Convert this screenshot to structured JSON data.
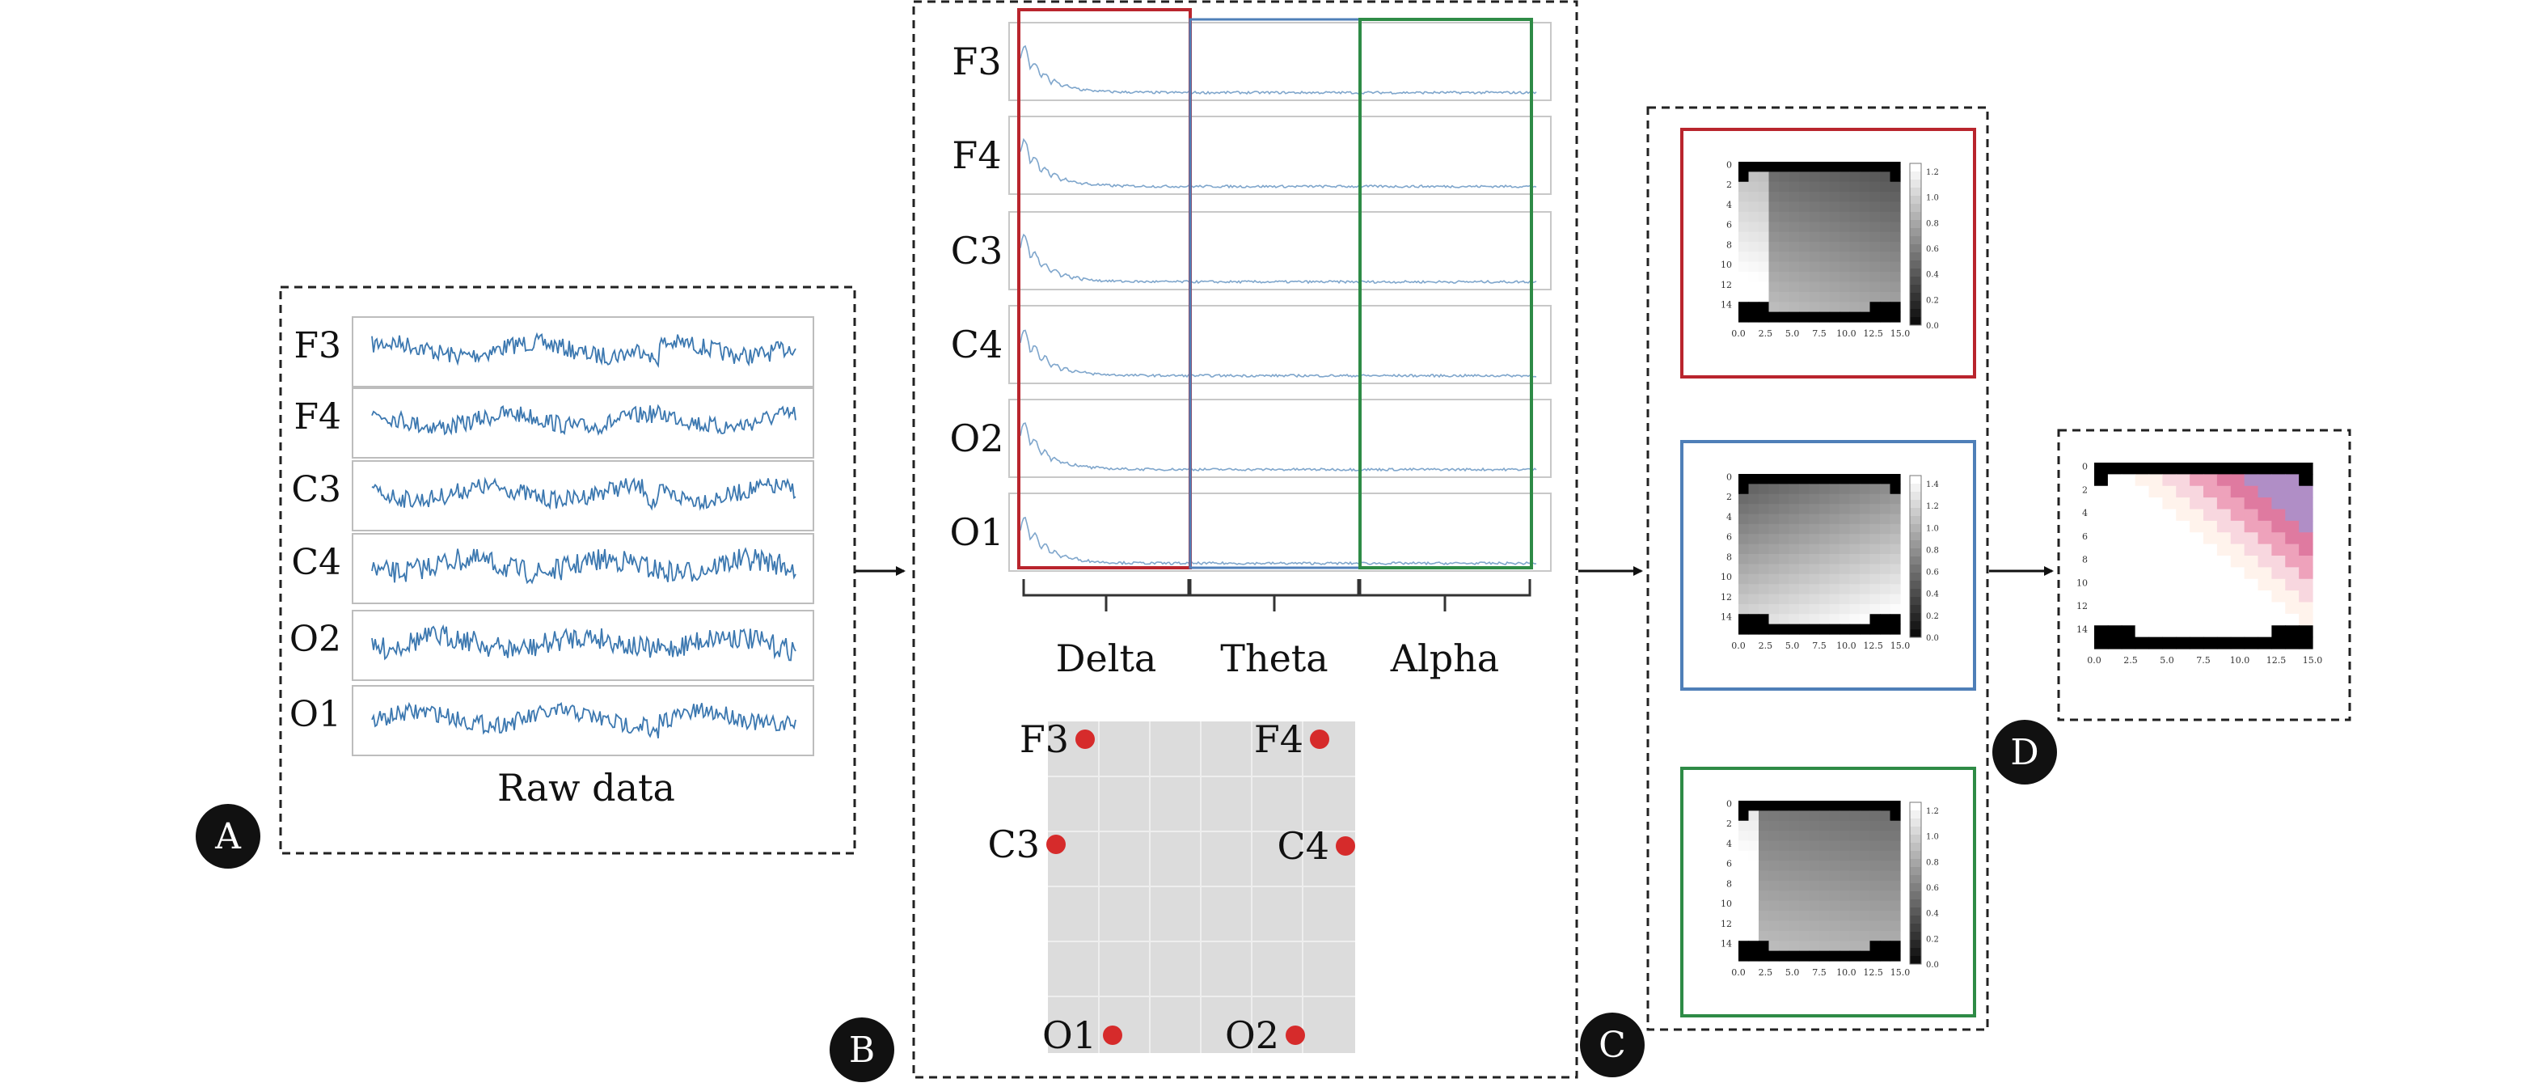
{
  "channels": [
    "F3",
    "F4",
    "C3",
    "C4",
    "O2",
    "O1"
  ],
  "raw_caption": "Raw data",
  "bands": [
    {
      "name": "Delta",
      "color": "#b9252d"
    },
    {
      "name": "Theta",
      "color": "#4f7fb8"
    },
    {
      "name": "Alpha",
      "color": "#2e8b46"
    }
  ],
  "electrodes": [
    {
      "label": "F3"
    },
    {
      "label": "F4"
    },
    {
      "label": "C3"
    },
    {
      "label": "C4"
    },
    {
      "label": "O1"
    },
    {
      "label": "O2"
    }
  ],
  "heatmap_x_ticks": [
    "0.0",
    "2.5",
    "5.0",
    "7.5",
    "10.0",
    "12.5",
    "15.0"
  ],
  "heatmap_y_ticks": [
    "0",
    "2",
    "4",
    "6",
    "8",
    "10",
    "12",
    "14"
  ],
  "colorbars": [
    {
      "band": "Delta",
      "ticks": [
        "1.2",
        "1.0",
        "0.8",
        "0.6",
        "0.4",
        "0.2",
        "0.0"
      ]
    },
    {
      "band": "Theta",
      "ticks": [
        "1.4",
        "1.2",
        "1.0",
        "0.8",
        "0.6",
        "0.4",
        "0.2",
        "0.0"
      ]
    },
    {
      "band": "Alpha",
      "ticks": [
        "1.2",
        "1.0",
        "0.8",
        "0.6",
        "0.4",
        "0.2",
        "0.0"
      ]
    }
  ],
  "panel_letters": {
    "a": "A",
    "b": "B",
    "c": "C",
    "d": "D"
  },
  "colors": {
    "signal": "#3c78b0",
    "electrode": "#d62b2b",
    "scalp_bg": "#dcdcdc",
    "dash": "#222222"
  }
}
